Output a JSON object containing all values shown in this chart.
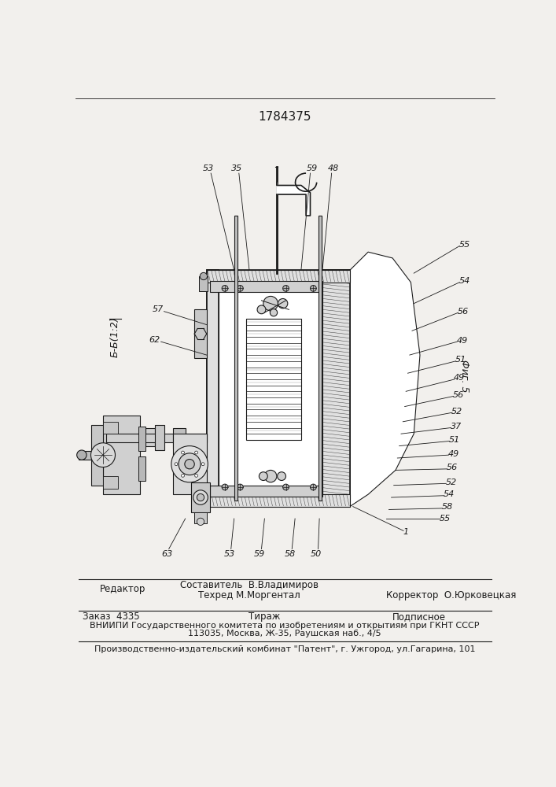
{
  "patent_number": "1784375",
  "bg_color": "#f2f0ed",
  "drawing_color": "#1a1a1a",
  "footer_line1_left": "Редактор",
  "footer_line1_center1": "Составитель  В.Владимиров",
  "footer_line1_center2": "Техред М.Моргентал",
  "footer_line1_right": "Корректор  О.Юрковецкая",
  "footer_line2_left": "Заказ  4335",
  "footer_line2_center": "Тираж",
  "footer_line2_right": "Подписное",
  "footer_line3": "ВНИИПИ Государственного комитета по изобретениям и открытиям при ГКНТ СССР",
  "footer_line4": "113035, Москва, Ж-35, Раушская наб., 4/5",
  "footer_sep": "Производственно-издательский комбинат \"Патент\", г. Ужгород, ул.Гагарина, 101",
  "fig_label": "Фиг. 5",
  "section_label": "Б-Б(1:2)"
}
